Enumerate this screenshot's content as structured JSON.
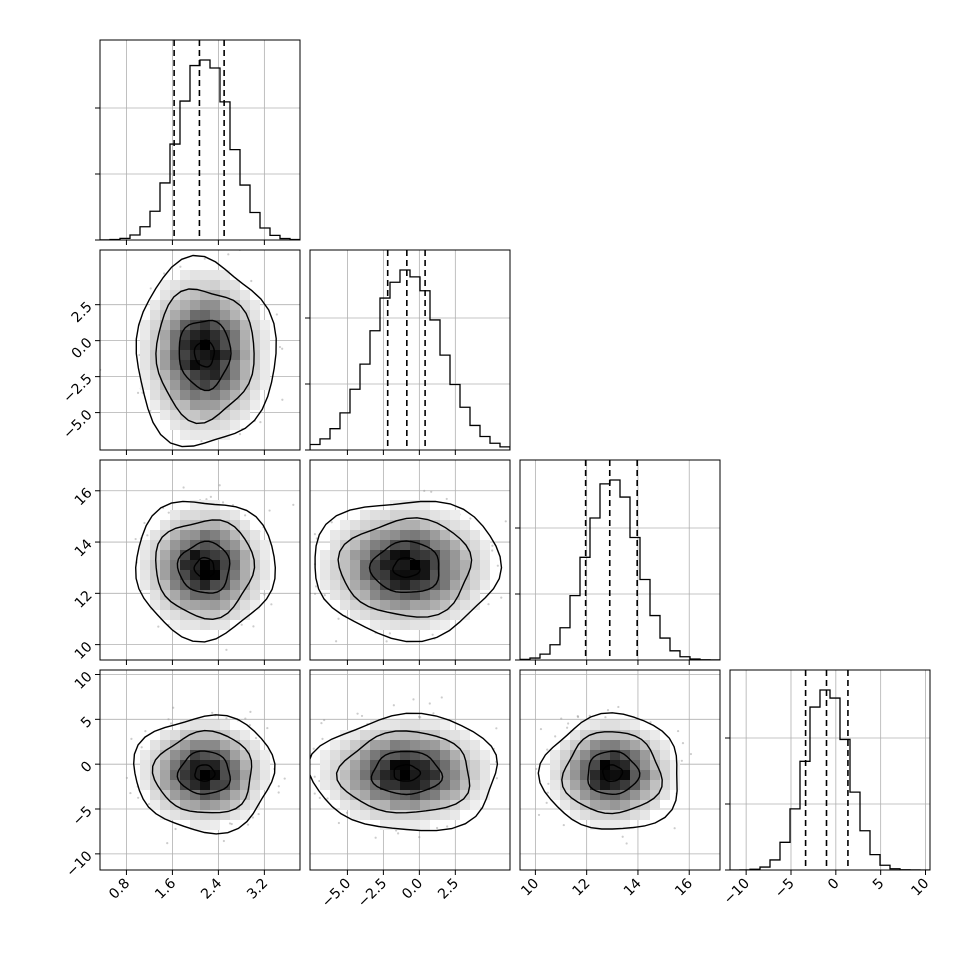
{
  "chart_data": {
    "type": "corner",
    "grid": true,
    "parameters": [
      {
        "range": [
          0.34,
          3.82
        ],
        "ticks": [
          0.8,
          1.6,
          2.4,
          3.2
        ],
        "tick_labels": [
          "0.8",
          "1.6",
          "2.4",
          "3.2"
        ],
        "mean": 2.16,
        "sd": 0.45,
        "quantiles": [
          1.63,
          2.07,
          2.5
        ]
      },
      {
        "range": [
          -7.6,
          6.3
        ],
        "ticks": [
          -5.0,
          -2.5,
          0.0,
          2.5
        ],
        "tick_labels": [
          "−5.0",
          "−2.5",
          "0.0",
          "2.5"
        ],
        "mean": -0.9,
        "sd": 2.4,
        "quantiles": [
          -2.2,
          -0.87,
          0.4
        ]
      },
      {
        "range": [
          9.4,
          17.2
        ],
        "ticks": [
          10,
          12,
          14,
          16
        ],
        "tick_labels": [
          "10",
          "12",
          "14",
          "16"
        ],
        "mean": 13.0,
        "sd": 1.0,
        "quantiles": [
          11.96,
          12.9,
          13.97
        ]
      },
      {
        "range": [
          -11.8,
          10.5
        ],
        "ticks": [
          -10,
          -5,
          0,
          5,
          10
        ],
        "tick_labels": [
          "−10",
          "−5",
          "0",
          "5",
          "10"
        ],
        "mean": -1.0,
        "sd": 2.4,
        "quantiles": [
          -3.37,
          -1.04,
          1.35
        ]
      }
    ],
    "y_tick_labels": {
      "row_1": [
        "−5.0",
        "−2.5",
        "0.0",
        "2.5"
      ],
      "row_2": [
        "10",
        "12",
        "14",
        "16"
      ],
      "row_3": [
        "−10",
        "−5",
        "0",
        "5",
        "10"
      ]
    },
    "colors": {
      "line": "#000000",
      "scatter": "#9a9a9a",
      "grid": "#b0b0b0",
      "density_low": "#f2f2f2",
      "density_high": "#000000"
    }
  }
}
